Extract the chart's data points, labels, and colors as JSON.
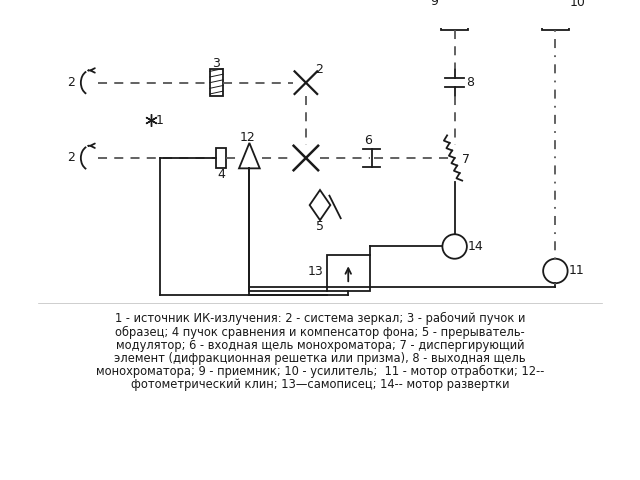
{
  "fig_width": 6.4,
  "fig_height": 4.8,
  "dpi": 100,
  "background_color": "#ffffff",
  "caption_lines": [
    "1 - источник ИК-излучения: 2 - система зеркал; 3 - рабочий пучок и",
    "образец; 4 пучок сравнения и компенсатор фона; 5 - прерыватель-",
    "модулятор; 6 - входная щель монохроматора; 7 - диспергирующий",
    "элемент (дифракционная решетка или призма), 8 - выходная щель",
    "монохроматора; 9 - приемник; 10 - усилитель;  11 - мотор отработки; 12--",
    "фотометрический клин; 13—самописец; 14-- мотор развертки"
  ],
  "caption_fontsize": 8.3,
  "label_fontsize": 9,
  "line_color": "#1a1a1a",
  "dashed_color": "#555555",
  "dotdash_color": "#777777"
}
